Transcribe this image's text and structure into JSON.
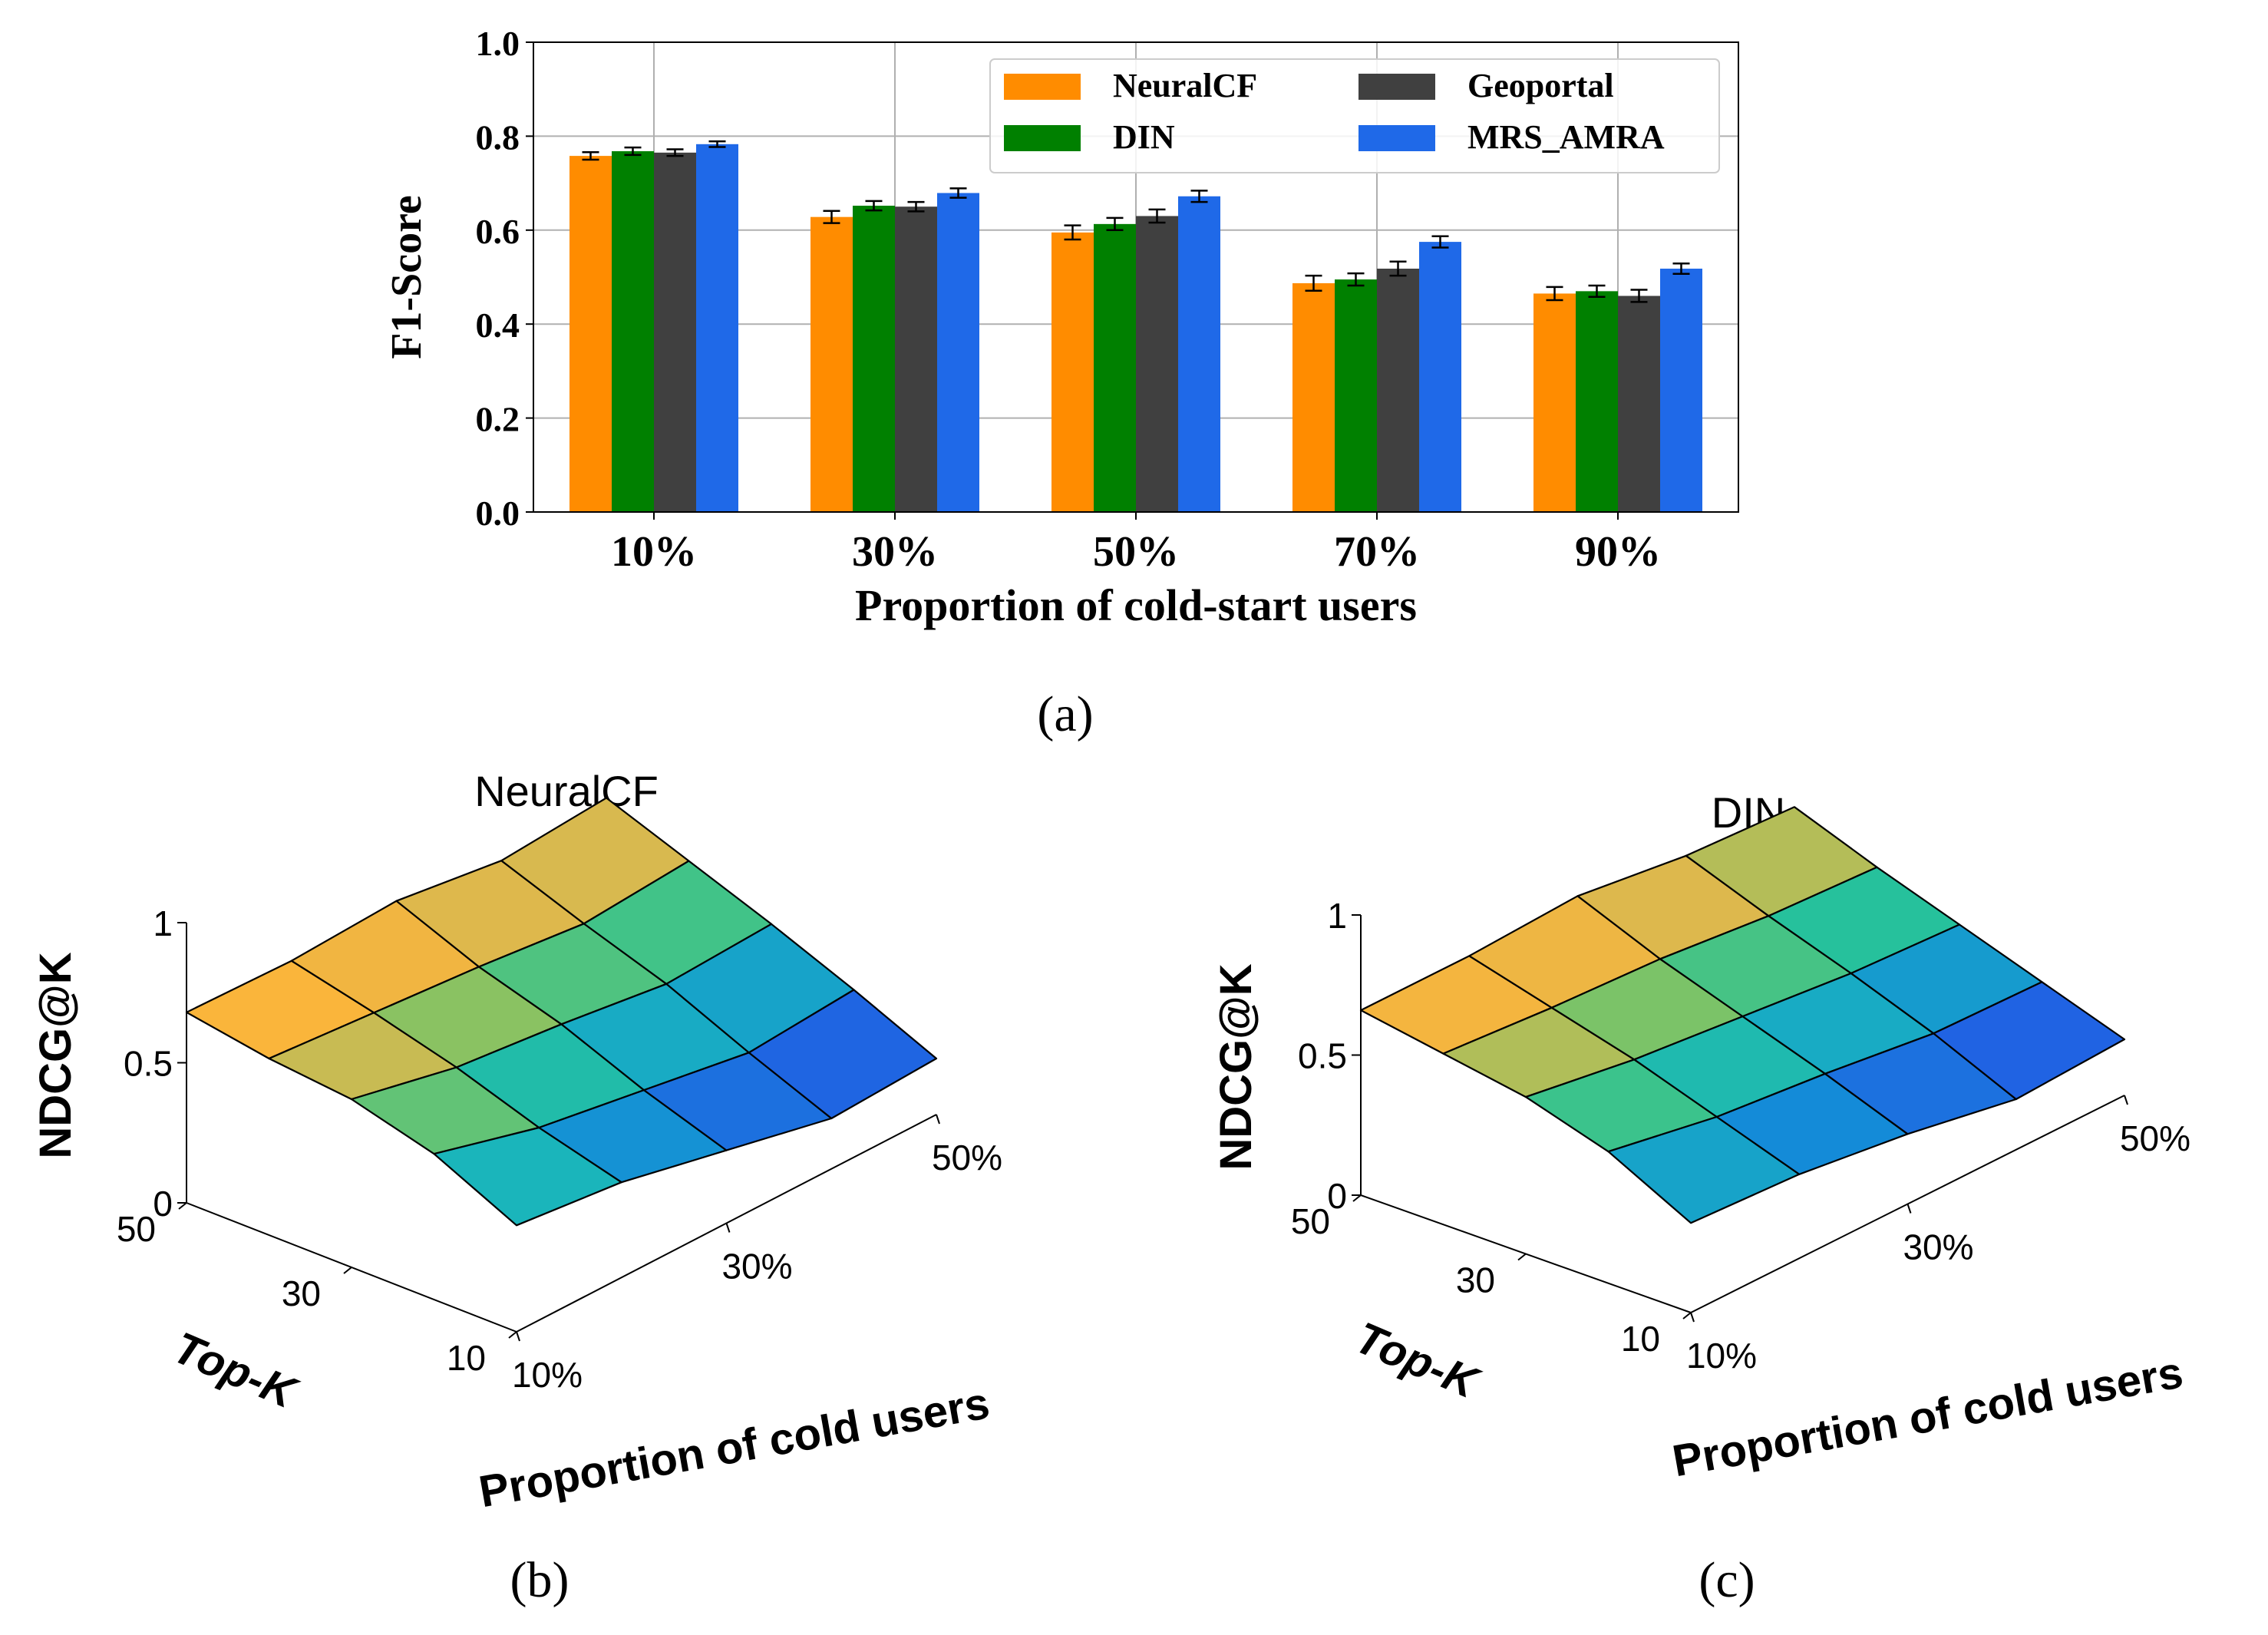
{
  "chart_data": [
    {
      "type": "bar",
      "title": "",
      "xlabel": "Proportion of cold-start users",
      "ylabel": "F1-Score",
      "ylim": [
        0.0,
        1.0
      ],
      "yticks": [
        "0.0",
        "0.2",
        "0.4",
        "0.6",
        "0.8",
        "1.0"
      ],
      "categories": [
        "10%",
        "30%",
        "50%",
        "70%",
        "90%"
      ],
      "grid": true,
      "legend_position": "top-right",
      "series": [
        {
          "name": "NeuralCF",
          "color": "#ff8c00",
          "values": [
            0.758,
            0.628,
            0.595,
            0.487,
            0.465
          ],
          "errors": [
            0.008,
            0.013,
            0.015,
            0.016,
            0.014
          ]
        },
        {
          "name": "DIN",
          "color": "#008000",
          "values": [
            0.768,
            0.652,
            0.613,
            0.495,
            0.47
          ],
          "errors": [
            0.008,
            0.01,
            0.013,
            0.013,
            0.012
          ]
        },
        {
          "name": "Geoportal",
          "color": "#404040",
          "values": [
            0.765,
            0.65,
            0.63,
            0.518,
            0.46
          ],
          "errors": [
            0.007,
            0.01,
            0.014,
            0.015,
            0.013
          ]
        },
        {
          "name": "MRS_AMRA",
          "color": "#1f69e8",
          "values": [
            0.783,
            0.679,
            0.672,
            0.575,
            0.518
          ],
          "errors": [
            0.006,
            0.01,
            0.012,
            0.012,
            0.011
          ]
        }
      ],
      "caption": "(a)"
    },
    {
      "type": "surface",
      "title": "NeuralCF",
      "zlabel": "NDCG@K",
      "ylabel": "Top-K",
      "xlabel": "Proportion  of  cold users",
      "x": [
        "10%",
        "30%",
        "50%"
      ],
      "y": [
        "10",
        "30",
        "50"
      ],
      "zticks": [
        "0",
        "0.5",
        "1"
      ],
      "zlim": [
        0,
        1
      ],
      "z_grid": [
        [
          0.68,
          0.67,
          0.69,
          0.64,
          0.67
        ],
        [
          0.63,
          0.6,
          0.57,
          0.53,
          0.56
        ],
        [
          0.6,
          0.52,
          0.48,
          0.43,
          0.45
        ],
        [
          0.52,
          0.42,
          0.36,
          0.3,
          0.33
        ],
        [
          0.38,
          0.34,
          0.26,
          0.18,
          0.2
        ]
      ],
      "caption": "(b)"
    },
    {
      "type": "surface",
      "title": "DIN",
      "zlabel": "NDCG@K",
      "ylabel": "Top-K",
      "xlabel": "Proportion  of  cold users",
      "x": [
        "10%",
        "30%",
        "50%"
      ],
      "y": [
        "10",
        "30",
        "50"
      ],
      "zticks": [
        "0",
        "0.5",
        "1"
      ],
      "zlim": [
        0,
        1
      ],
      "z_grid": [
        [
          0.66,
          0.66,
          0.68,
          0.63,
          0.61
        ],
        [
          0.61,
          0.58,
          0.56,
          0.52,
          0.5
        ],
        [
          0.56,
          0.5,
          0.46,
          0.42,
          0.4
        ],
        [
          0.47,
          0.4,
          0.36,
          0.31,
          0.3
        ],
        [
          0.32,
          0.3,
          0.25,
          0.18,
          0.2
        ]
      ],
      "caption": "(c)"
    }
  ]
}
